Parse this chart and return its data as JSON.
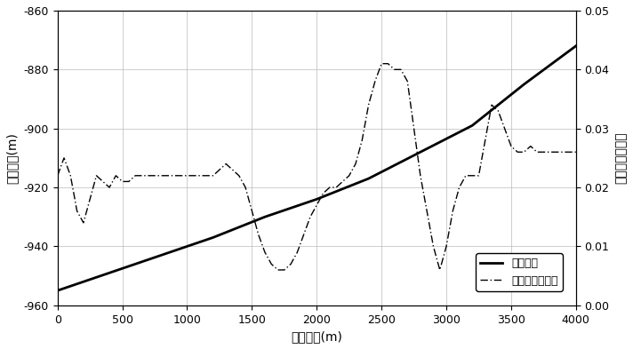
{
  "title": "",
  "xlabel": "横向距离(m)",
  "ylabel_left": "海底深度(m)",
  "ylabel_right": "海底地形坡度角",
  "legend_depth": "海底深度",
  "legend_slope": "海底地形坡度角",
  "xlim": [
    0,
    4000
  ],
  "ylim_left": [
    -960,
    -860
  ],
  "ylim_right": [
    0,
    0.05
  ],
  "yticks_left": [
    -960,
    -940,
    -920,
    -900,
    -880,
    -860
  ],
  "yticks_right": [
    0,
    0.01,
    0.02,
    0.03,
    0.04,
    0.05
  ],
  "xticks": [
    0,
    500,
    1000,
    1500,
    2000,
    2500,
    3000,
    3500,
    4000
  ],
  "depth_x": [
    0,
    400,
    800,
    1200,
    1600,
    2000,
    2400,
    2800,
    3200,
    3600,
    4000
  ],
  "depth_y": [
    -955,
    -949,
    -943,
    -937,
    -930,
    -924,
    -917,
    -908,
    -899,
    -885,
    -872
  ],
  "slope_x": [
    0,
    50,
    100,
    150,
    200,
    250,
    300,
    350,
    400,
    450,
    500,
    550,
    600,
    650,
    700,
    750,
    800,
    850,
    900,
    950,
    1000,
    1050,
    1100,
    1150,
    1200,
    1250,
    1300,
    1350,
    1400,
    1450,
    1500,
    1550,
    1600,
    1650,
    1700,
    1750,
    1800,
    1850,
    1900,
    1950,
    2000,
    2050,
    2100,
    2150,
    2200,
    2250,
    2300,
    2350,
    2400,
    2450,
    2500,
    2550,
    2600,
    2650,
    2700,
    2750,
    2800,
    2850,
    2900,
    2950,
    3000,
    3050,
    3100,
    3150,
    3200,
    3250,
    3300,
    3350,
    3400,
    3450,
    3500,
    3550,
    3600,
    3650,
    3700,
    3750,
    3800,
    3850,
    3900,
    3950,
    4000
  ],
  "slope_y": [
    0.022,
    0.025,
    0.022,
    0.016,
    0.014,
    0.018,
    0.022,
    0.021,
    0.02,
    0.022,
    0.021,
    0.021,
    0.022,
    0.022,
    0.022,
    0.022,
    0.022,
    0.022,
    0.022,
    0.022,
    0.022,
    0.022,
    0.022,
    0.022,
    0.022,
    0.023,
    0.024,
    0.023,
    0.022,
    0.02,
    0.016,
    0.012,
    0.009,
    0.007,
    0.006,
    0.006,
    0.007,
    0.009,
    0.012,
    0.015,
    0.017,
    0.019,
    0.02,
    0.02,
    0.021,
    0.022,
    0.024,
    0.028,
    0.034,
    0.038,
    0.041,
    0.041,
    0.04,
    0.04,
    0.038,
    0.03,
    0.022,
    0.016,
    0.01,
    0.006,
    0.01,
    0.016,
    0.02,
    0.022,
    0.022,
    0.022,
    0.028,
    0.034,
    0.033,
    0.03,
    0.027,
    0.026,
    0.026,
    0.027,
    0.026,
    0.026,
    0.026,
    0.026,
    0.026,
    0.026,
    0.026
  ],
  "line_color": "#000000",
  "background_color": "#ffffff",
  "grid_color": "#bbbbbb",
  "font_size": 10
}
